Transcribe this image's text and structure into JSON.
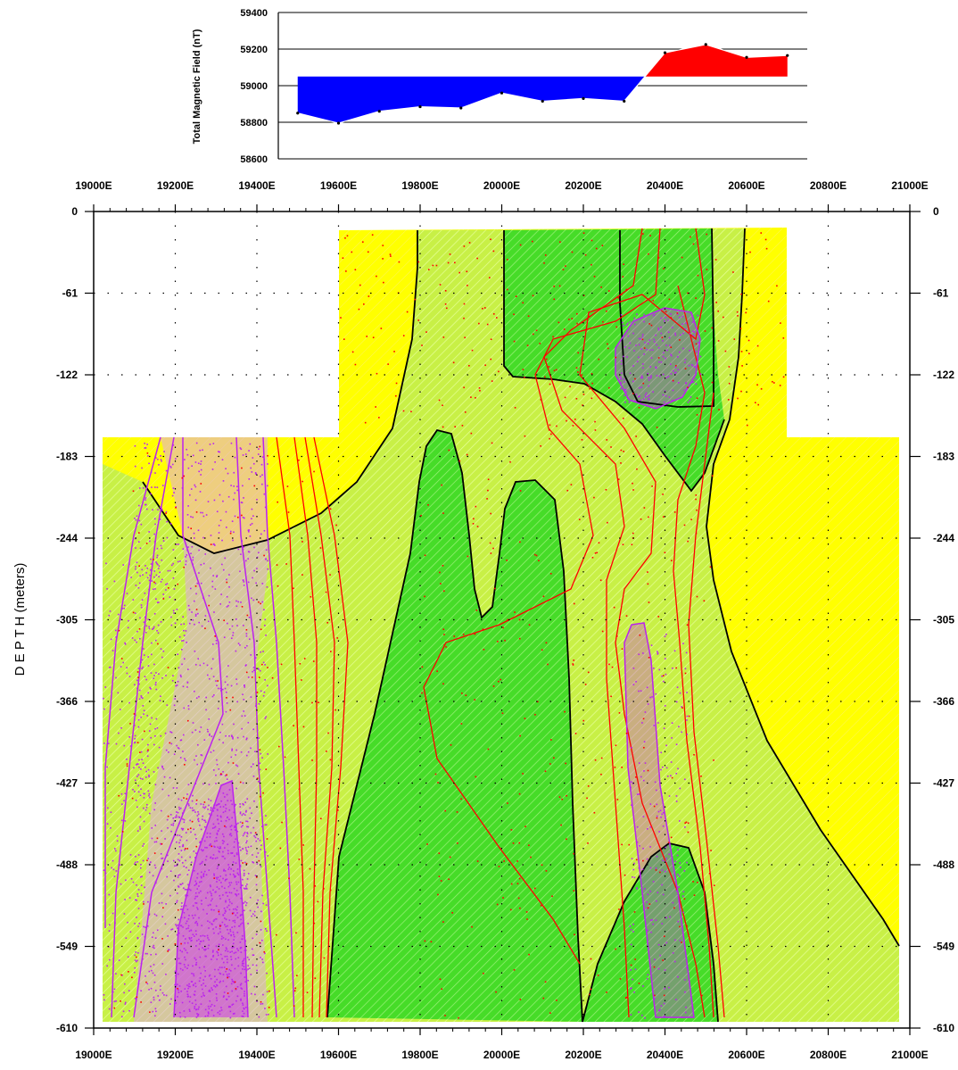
{
  "colors": {
    "positive_anomaly": "#ff0000",
    "negative_anomaly": "#0000ff",
    "zone_yellow": "#ffff00",
    "zone_yellowgreen": "#c8f046",
    "zone_green": "#46dc28",
    "contour_black": "#000000",
    "contour_red": "#ff0000",
    "contour_magenta": "#bb22ee"
  },
  "chart_data": [
    {
      "type": "area",
      "ylabel": "Total Magnetic Field (nT)",
      "ylim": [
        58600,
        59400
      ],
      "yticks": [
        "58600",
        "58800",
        "59000",
        "59200",
        "59400"
      ],
      "baseline": 59050,
      "grid": true,
      "x": [
        19500,
        19600,
        19700,
        19800,
        19900,
        20000,
        20100,
        20200,
        20300,
        20400,
        20500,
        20600,
        20700
      ],
      "values": [
        58850,
        58795,
        58860,
        58885,
        58878,
        58960,
        58915,
        58930,
        58915,
        59180,
        59225,
        59155,
        59165
      ]
    },
    {
      "type": "heatmap",
      "ylabel": "D E P T H  (meters)",
      "xlim": [
        19000,
        21000
      ],
      "ylim": [
        0,
        -610
      ],
      "xticks": [
        "19000E",
        "19200E",
        "19400E",
        "19600E",
        "19800E",
        "20000E",
        "20200E",
        "20400E",
        "20600E",
        "20800E",
        "21000E"
      ],
      "yticks": [
        "0",
        "-61",
        "-122",
        "-183",
        "-244",
        "-305",
        "-366",
        "-427",
        "-488",
        "-549",
        "-610"
      ],
      "grid": "dotted"
    }
  ]
}
